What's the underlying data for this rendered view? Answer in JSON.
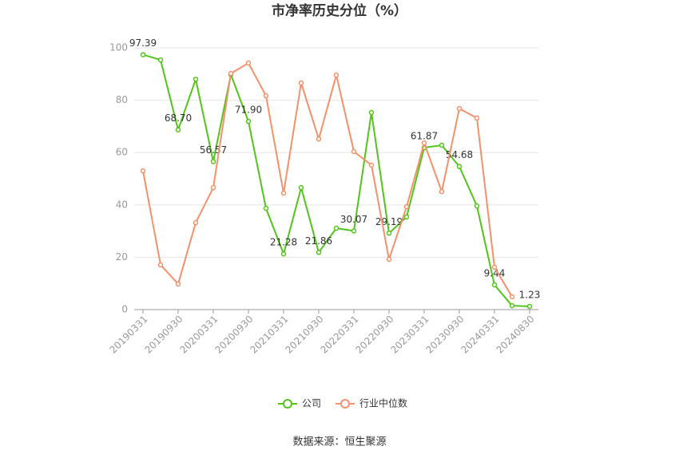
{
  "chart_data": {
    "type": "line",
    "title": "市净率历史分位（%）",
    "source": "数据来源：恒生聚源",
    "categories": [
      "20190331",
      null,
      "20190930",
      null,
      "20200331",
      null,
      "20200930",
      null,
      "20210331",
      null,
      "20210930",
      null,
      "20220331",
      null,
      "20220930",
      null,
      "20230331",
      null,
      "20230930",
      null,
      "20240331",
      null,
      "20240830"
    ],
    "series": [
      {
        "name": "公司",
        "color": "#52c41a",
        "values": [
          97.39,
          95.4,
          68.7,
          88.0,
          56.57,
          89.8,
          71.9,
          38.7,
          21.28,
          46.6,
          21.86,
          31.1,
          30.07,
          75.3,
          29.19,
          35.4,
          61.87,
          62.8,
          54.68,
          39.6,
          9.44,
          1.5,
          1.23
        ],
        "value_labels": [
          "97.39",
          null,
          "68.70",
          null,
          "56.57",
          null,
          "71.90",
          null,
          "21.28",
          null,
          "21.86",
          null,
          "30.07",
          null,
          "29.19",
          null,
          "61.87",
          null,
          "54.68",
          null,
          "9.44",
          null,
          "1.23"
        ]
      },
      {
        "name": "行业中位数",
        "color": "#f4916b",
        "values": [
          53.0,
          17.1,
          9.8,
          33.2,
          46.6,
          90.2,
          94.2,
          81.7,
          44.5,
          86.6,
          65.2,
          89.6,
          60.4,
          55.2,
          19.2,
          39.3,
          63.7,
          45.1,
          76.8,
          73.2,
          16.2,
          4.9,
          null
        ]
      }
    ],
    "ylim": [
      0,
      100
    ],
    "yticks": [
      0,
      20,
      40,
      60,
      80,
      100
    ],
    "grid": true
  }
}
